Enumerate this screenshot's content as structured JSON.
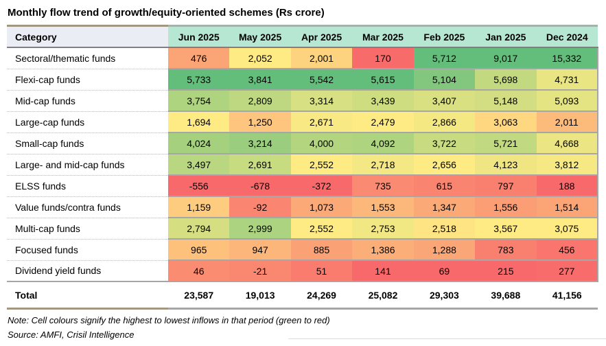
{
  "title": "Monthly flow trend of growth/equity-oriented schemes (Rs crore)",
  "chart_data": {
    "type": "heatmap",
    "title": "Monthly flow trend of growth/equity-oriented schemes (Rs crore)",
    "unit": "Rs crore",
    "row_header_label": "Category",
    "columns": [
      "Jun 2025",
      "May 2025",
      "Apr 2025",
      "Mar 2025",
      "Feb 2025",
      "Jan 2025",
      "Dec 2024"
    ],
    "categories": [
      "Sectoral/thematic funds",
      "Flexi-cap funds",
      "Mid-cap funds",
      "Large-cap funds",
      "Small-cap funds",
      "Large- and mid-cap funds",
      "ELSS funds",
      "Value funds/contra funds",
      "Multi-cap funds",
      "Focused funds",
      "Dividend yield funds"
    ],
    "values": [
      [
        476,
        2052,
        2001,
        170,
        5712,
        9017,
        15332
      ],
      [
        5733,
        3841,
        5542,
        5615,
        5104,
        5698,
        4731
      ],
      [
        3754,
        2809,
        3314,
        3439,
        3407,
        5148,
        5093
      ],
      [
        1694,
        1250,
        2671,
        2479,
        2866,
        3063,
        2011
      ],
      [
        4024,
        3214,
        4000,
        4092,
        3722,
        5721,
        4668
      ],
      [
        3497,
        2691,
        2552,
        2718,
        2656,
        4123,
        3812
      ],
      [
        -556,
        -678,
        -372,
        735,
        615,
        797,
        188
      ],
      [
        1159,
        -92,
        1073,
        1553,
        1347,
        1556,
        1514
      ],
      [
        2794,
        2999,
        2552,
        2753,
        2518,
        3567,
        3075
      ],
      [
        965,
        947,
        885,
        1386,
        1288,
        783,
        456
      ],
      [
        46,
        -21,
        51,
        141,
        69,
        215,
        277
      ]
    ],
    "total_label": "Total",
    "totals": [
      23587,
      19013,
      24269,
      25082,
      29303,
      39688,
      41156
    ],
    "color_scale": {
      "low": "#F8696B",
      "mid": "#FFEB84",
      "high": "#63BE7B",
      "midpoint": "column median",
      "direction": "per-column, green = highest inflow, red = lowest inflow"
    },
    "legend_position": "none",
    "grid": "row separators only"
  },
  "colors": {
    "month_header_bg": "#b6e7d3",
    "category_header_bg": "#eaedf3",
    "header_underline": "#7f7f7f",
    "row_divider": "#a6a6a6",
    "category_divider_dotted": "#b5b5b5",
    "accent_tan_rule": "#a1977e",
    "month_header_top_rule": "#a3b4aa"
  },
  "note": "Note: Cell colours signify the highest to lowest inflows in that period (green to red)",
  "source": "Source: AMFI, Crisil Intelligence"
}
